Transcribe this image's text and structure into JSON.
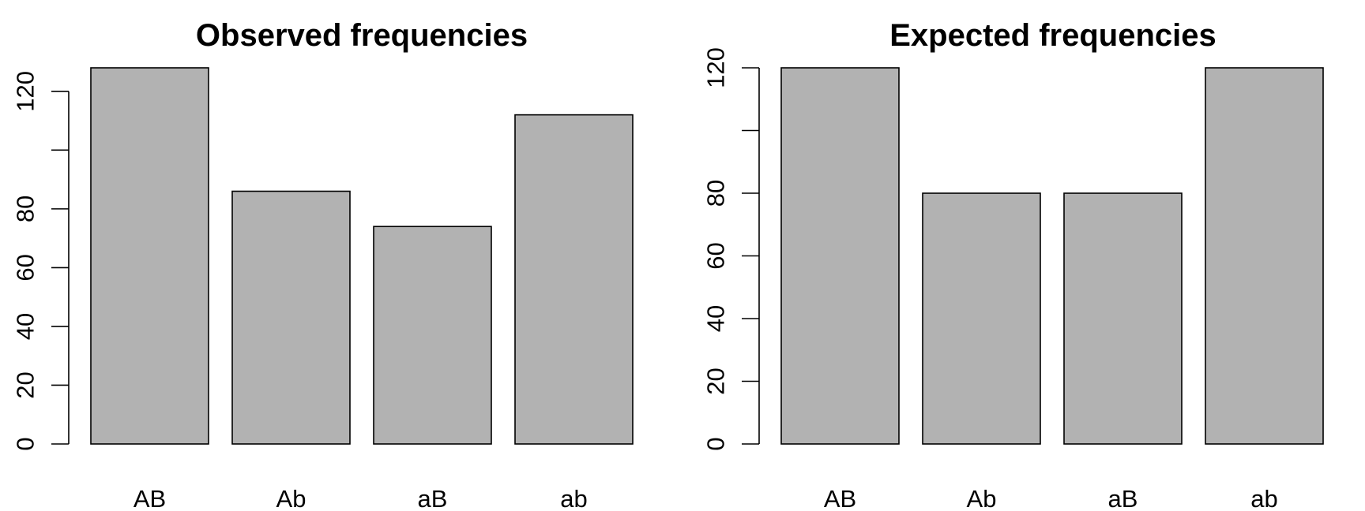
{
  "chart_data": [
    {
      "type": "bar",
      "title": "Observed frequencies",
      "categories": [
        "AB",
        "Ab",
        "aB",
        "ab"
      ],
      "values": [
        128,
        86,
        74,
        112
      ],
      "yticks": [
        0,
        20,
        40,
        60,
        80,
        100,
        120
      ],
      "ytick_labels": [
        "0",
        "20",
        "40",
        "60",
        "80",
        "",
        "120"
      ],
      "ylim": [
        0,
        128
      ],
      "xlabel": "",
      "ylabel": "",
      "bar_color": "#b2b2b2",
      "grid": false
    },
    {
      "type": "bar",
      "title": "Expected frequencies",
      "categories": [
        "AB",
        "Ab",
        "aB",
        "ab"
      ],
      "values": [
        120,
        80,
        80,
        120
      ],
      "yticks": [
        0,
        20,
        40,
        60,
        80,
        100,
        120
      ],
      "ytick_labels": [
        "0",
        "20",
        "40",
        "60",
        "80",
        "",
        "120"
      ],
      "ylim": [
        0,
        120
      ],
      "xlabel": "",
      "ylabel": "",
      "bar_color": "#b2b2b2",
      "grid": false
    }
  ]
}
